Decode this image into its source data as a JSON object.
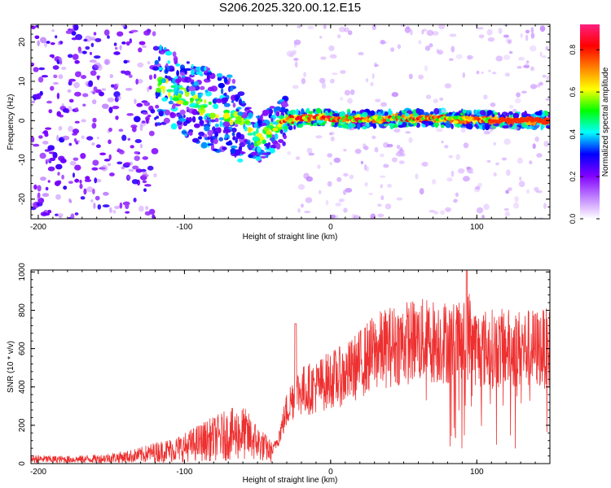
{
  "chart_data": [
    {
      "type": "heatmap",
      "title": "S206.2025.320.00.12.E15",
      "xlabel": "Height of straight line (km)",
      "ylabel": "Frequency (Hz)",
      "xlim": [
        -205,
        150
      ],
      "ylim": [
        -25,
        24.5
      ],
      "xticks": [
        -200,
        -100,
        0,
        100
      ],
      "xtick_labels": [
        "-200",
        "-100",
        "0",
        "100"
      ],
      "yticks": [
        -20,
        -10,
        0,
        10,
        20
      ],
      "ytick_labels": [
        "-20",
        "-10",
        "0",
        "10",
        "20"
      ],
      "colorbar": {
        "label": "Normalized spectral amplitude",
        "range": [
          0,
          0.92
        ],
        "ticks": [
          0.0,
          0.2,
          0.4,
          0.6,
          0.8
        ],
        "tick_labels": [
          "0.0",
          "0.2",
          "0.4",
          "0.6",
          "0.8"
        ],
        "colormap": [
          "#ffffff",
          "#c080ff",
          "#8000ff",
          "#0000ff",
          "#00ffff",
          "#00ff00",
          "#ffff00",
          "#ff8000",
          "#ff0000",
          "#ff2080"
        ]
      },
      "ridge": {
        "x": [
          -205,
          -180,
          -150,
          -130,
          -110,
          -90,
          -75,
          -65,
          -55,
          -48,
          -40,
          -30,
          -20,
          -10,
          0,
          20,
          40,
          60,
          80,
          100,
          120,
          150
        ],
        "y": [
          10,
          9,
          12,
          10,
          8,
          4,
          2,
          1,
          -3,
          -5,
          -2,
          0,
          0.5,
          1,
          0.5,
          0.3,
          0.5,
          0.5,
          0.5,
          0.3,
          0,
          0
        ]
      }
    },
    {
      "type": "line",
      "xlabel": "Height of straight line (km)",
      "ylabel": "SNR (10 * v/v)",
      "xlim": [
        -205,
        150
      ],
      "ylim": [
        0,
        1010
      ],
      "xticks": [
        -200,
        -100,
        0,
        100
      ],
      "xtick_labels": [
        "-200",
        "-100",
        "0",
        "100"
      ],
      "yticks": [
        0,
        200,
        400,
        600,
        800,
        1000
      ],
      "ytick_labels": [
        "0",
        "200",
        "400",
        "600",
        "800",
        "1000"
      ],
      "series": [
        {
          "color": "#ee3030",
          "x": [
            -205,
            -190,
            -175,
            -160,
            -150,
            -140,
            -130,
            -120,
            -110,
            -100,
            -90,
            -80,
            -70,
            -60,
            -50,
            -40,
            -35,
            -30,
            -25,
            -20,
            -10,
            0,
            10,
            20,
            30,
            40,
            50,
            60,
            70,
            80,
            90,
            95,
            100,
            110,
            120,
            130,
            140,
            150
          ],
          "y": [
            25,
            22,
            22,
            25,
            30,
            35,
            45,
            60,
            70,
            85,
            110,
            130,
            150,
            160,
            110,
            60,
            150,
            280,
            360,
            380,
            400,
            440,
            460,
            520,
            580,
            610,
            630,
            640,
            640,
            635,
            620,
            680,
            600,
            600,
            600,
            600,
            600,
            600
          ]
        }
      ]
    }
  ]
}
